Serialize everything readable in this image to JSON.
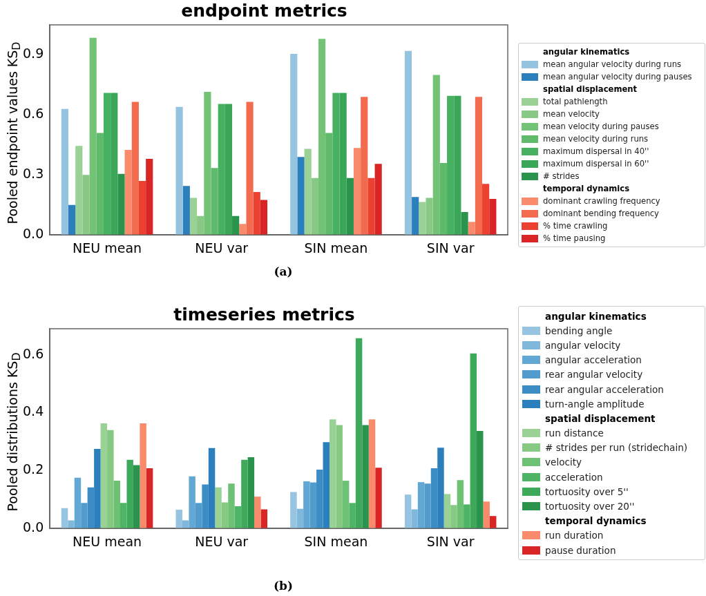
{
  "chart_data": [
    {
      "type": "bar",
      "title": "endpoint metrics",
      "ylabel": "Pooled endpoint values KS$_{D}$",
      "categories": [
        "NEU mean",
        "NEU var",
        "SIN mean",
        "SIN var"
      ],
      "ylim": [
        0,
        1.05
      ],
      "yticks": [
        {
          "value": 0,
          "label": "0.0"
        },
        {
          "value": 0.3,
          "label": "0.3"
        },
        {
          "value": 0.6,
          "label": "0.6"
        },
        {
          "value": 0.9,
          "label": "0.9"
        }
      ],
      "legend": "right",
      "annotations": [
        "(a)"
      ],
      "series": [
        {
          "name": "angular kinematics",
          "values": [
            null,
            null,
            null,
            null
          ]
        },
        {
          "name": "mean angular velocity during runs",
          "color": "#94c4df",
          "values": [
            0.63,
            0.64,
            0.905,
            0.92
          ]
        },
        {
          "name": "mean angular velocity during pauses",
          "color": "#2a7fbc",
          "values": [
            0.15,
            0.245,
            0.39,
            0.19
          ]
        },
        {
          "name": "spatial displacement",
          "values": [
            null,
            null,
            null,
            null
          ]
        },
        {
          "name": "total pathlength",
          "color": "#9ad195",
          "values": [
            0.445,
            0.185,
            0.43,
            0.165
          ]
        },
        {
          "name": "mean velocity",
          "color": "#88c985",
          "values": [
            0.3,
            0.095,
            0.285,
            0.185
          ]
        },
        {
          "name": "mean velocity during pauses",
          "color": "#72c375",
          "values": [
            0.985,
            0.715,
            0.98,
            0.8
          ]
        },
        {
          "name": "mean velocity during runs",
          "color": "#5fba6c",
          "values": [
            0.51,
            0.335,
            0.51,
            0.36
          ]
        },
        {
          "name": "maximum dispersal in 40''",
          "color": "#47b162",
          "values": [
            0.71,
            0.655,
            0.71,
            0.695
          ]
        },
        {
          "name": "maximum dispersal in 60''",
          "color": "#3aa758",
          "values": [
            0.71,
            0.655,
            0.71,
            0.695
          ]
        },
        {
          "name": "# strides",
          "color": "#2a944d",
          "values": [
            0.305,
            0.095,
            0.285,
            0.115
          ]
        },
        {
          "name": "temporal dynamics",
          "values": [
            null,
            null,
            null,
            null
          ]
        },
        {
          "name": "dominant crawling frequency",
          "color": "#f98b6c",
          "values": [
            0.425,
            0.055,
            0.435,
            0.065
          ]
        },
        {
          "name": "dominant bending frequency",
          "color": "#f26b4f",
          "values": [
            0.665,
            0.665,
            0.69,
            0.69
          ]
        },
        {
          "name": "% time crawling",
          "color": "#ec4130",
          "values": [
            0.27,
            0.215,
            0.285,
            0.255
          ]
        },
        {
          "name": "% time pausing",
          "color": "#d92526",
          "values": [
            0.38,
            0.175,
            0.355,
            0.18
          ]
        }
      ]
    },
    {
      "type": "bar",
      "title": "timeseries metrics",
      "ylabel": "Pooled distributions KS$_{D}$",
      "categories": [
        "NEU mean",
        "NEU var",
        "SIN mean",
        "SIN var"
      ],
      "ylim": [
        0,
        0.69
      ],
      "yticks": [
        {
          "value": 0,
          "label": "0.0"
        },
        {
          "value": 0.2,
          "label": "0.2"
        },
        {
          "value": 0.4,
          "label": "0.4"
        },
        {
          "value": 0.6,
          "label": "0.6"
        }
      ],
      "legend": "right",
      "annotations": [
        "(b)"
      ],
      "series": [
        {
          "name": "angular kinematics",
          "values": [
            null,
            null,
            null,
            null
          ]
        },
        {
          "name": "bending angle",
          "color": "#97c4e0",
          "values": [
            0.07,
            0.065,
            0.126,
            0.117
          ]
        },
        {
          "name": "angular velocity",
          "color": "#80b8dc",
          "values": [
            0.028,
            0.028,
            0.068,
            0.066
          ]
        },
        {
          "name": "angular acceleration",
          "color": "#63a8d5",
          "values": [
            0.175,
            0.18,
            0.163,
            0.16
          ]
        },
        {
          "name": "rear angular velocity",
          "color": "#519ccd",
          "values": [
            0.088,
            0.088,
            0.159,
            0.155
          ]
        },
        {
          "name": "rear angular acceleration",
          "color": "#3c8cc6",
          "values": [
            0.142,
            0.152,
            0.203,
            0.208
          ]
        },
        {
          "name": "turn-angle amplitude",
          "color": "#2a7fbc",
          "values": [
            0.275,
            0.278,
            0.298,
            0.279
          ]
        },
        {
          "name": "spatial displacement",
          "values": [
            null,
            null,
            null,
            null
          ]
        },
        {
          "name": "run distance",
          "color": "#9ad195",
          "values": [
            0.363,
            0.142,
            0.377,
            0.119
          ]
        },
        {
          "name": "# strides per run (stridechain)",
          "color": "#86c983",
          "values": [
            0.34,
            0.09,
            0.357,
            0.081
          ]
        },
        {
          "name": "velocity",
          "color": "#6dc174",
          "values": [
            0.165,
            0.155,
            0.165,
            0.167
          ]
        },
        {
          "name": "acceleration",
          "color": "#4eb566",
          "values": [
            0.088,
            0.077,
            0.088,
            0.083
          ]
        },
        {
          "name": "tortuosity over 5''",
          "color": "#3ea95b",
          "values": [
            0.237,
            0.237,
            0.657,
            0.605
          ]
        },
        {
          "name": "tortuosity over 20''",
          "color": "#2a944d",
          "values": [
            0.219,
            0.246,
            0.357,
            0.337
          ]
        },
        {
          "name": "temporal dynamics",
          "values": [
            null,
            null,
            null,
            null
          ]
        },
        {
          "name": "run duration",
          "color": "#f98b6c",
          "values": [
            0.363,
            0.11,
            0.377,
            0.093
          ]
        },
        {
          "name": "pause duration",
          "color": "#d92526",
          "values": [
            0.208,
            0.066,
            0.21,
            0.043
          ]
        }
      ]
    }
  ]
}
